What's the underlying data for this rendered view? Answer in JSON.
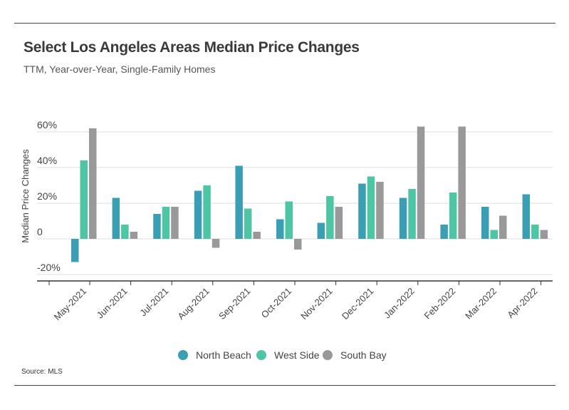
{
  "header": {
    "title": "Select Los Angeles Areas Median Price Changes",
    "subtitle": "TTM, Year-over-Year, Single-Family Homes"
  },
  "footer": {
    "source": "Source:  MLS"
  },
  "colors": {
    "North Beach": "#3a9fb4",
    "West Side": "#4ec5a4",
    "South Bay": "#999999"
  },
  "chart_data": {
    "type": "bar",
    "ylabel": "Median Price Changes",
    "xlabel": "",
    "ylim": [
      -20,
      60
    ],
    "yticks": [
      60,
      40,
      20,
      0,
      -20
    ],
    "ytick_labels": [
      "60%",
      "40%",
      "20%",
      "0",
      "-20%"
    ],
    "grid": true,
    "legend": "bottom",
    "categories": [
      "May-2021",
      "Jun-2021",
      "Jul-2021",
      "Aug-2021",
      "Sep-2021",
      "Oct-2021",
      "Nov-2021",
      "Dec-2021",
      "Jan-2022",
      "Feb-2022",
      "Mar-2022",
      "Apr-2022"
    ],
    "series": [
      {
        "name": "North Beach",
        "values": [
          -13,
          23,
          14,
          27,
          41,
          11,
          9,
          31,
          23,
          8,
          18,
          25
        ]
      },
      {
        "name": "West Side",
        "values": [
          44,
          8,
          18,
          30,
          17,
          21,
          24,
          35,
          28,
          26,
          5,
          8
        ]
      },
      {
        "name": "South Bay",
        "values": [
          62,
          4,
          18,
          -5,
          4,
          -6,
          18,
          32,
          63,
          63,
          13,
          5
        ]
      }
    ]
  }
}
